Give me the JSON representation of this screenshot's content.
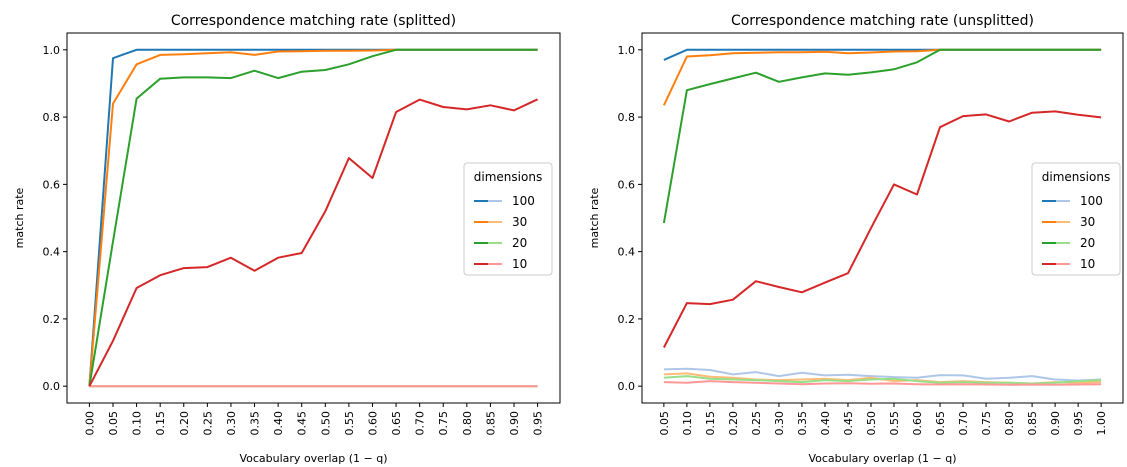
{
  "chart_data": [
    {
      "type": "line",
      "title": "Correspondence matching rate (splitted)",
      "xlabel": "Vocabulary overlap (1 − q)",
      "ylabel": "match rate",
      "xlim": [
        -0.0475,
        0.9975
      ],
      "ylim": [
        -0.05,
        1.05
      ],
      "xticks": [
        "0.00",
        "0.05",
        "0.10",
        "0.15",
        "0.20",
        "0.25",
        "0.30",
        "0.35",
        "0.40",
        "0.45",
        "0.50",
        "0.55",
        "0.60",
        "0.65",
        "0.70",
        "0.75",
        "0.80",
        "0.85",
        "0.90",
        "0.95"
      ],
      "yticks": [
        "0.0",
        "0.2",
        "0.4",
        "0.6",
        "0.8",
        "1.0"
      ],
      "grid": false,
      "legend": {
        "title": "dimensions",
        "placement": "center-right",
        "entries": [
          "100",
          "30",
          "20",
          "10"
        ]
      },
      "x": [
        0.0,
        0.05,
        0.1,
        0.15,
        0.2,
        0.25,
        0.3,
        0.35,
        0.4,
        0.45,
        0.5,
        0.55,
        0.6,
        0.65,
        0.7,
        0.75,
        0.8,
        0.85,
        0.9,
        0.95
      ],
      "series": [
        {
          "name": "100",
          "variant": "dark",
          "color": "#1f77b4",
          "values": [
            0.0,
            0.975,
            1.0,
            1.0,
            1.0,
            1.0,
            1.0,
            1.0,
            1.0,
            1.0,
            1.0,
            1.0,
            1.0,
            1.0,
            1.0,
            1.0,
            1.0,
            1.0,
            1.0,
            1.0
          ]
        },
        {
          "name": "30",
          "variant": "dark",
          "color": "#ff7f0e",
          "values": [
            0.0,
            0.84,
            0.957,
            0.985,
            0.987,
            0.99,
            0.993,
            0.985,
            0.995,
            0.996,
            0.997,
            0.997,
            0.998,
            1.0,
            1.0,
            1.0,
            1.0,
            1.0,
            1.0,
            1.0
          ]
        },
        {
          "name": "20",
          "variant": "dark",
          "color": "#2ca02c",
          "values": [
            0.0,
            0.43,
            0.855,
            0.914,
            0.918,
            0.918,
            0.916,
            0.938,
            0.916,
            0.935,
            0.94,
            0.957,
            0.981,
            1.0,
            1.0,
            1.0,
            1.0,
            1.0,
            1.0,
            1.0
          ]
        },
        {
          "name": "10",
          "variant": "dark",
          "color": "#d62728",
          "values": [
            0.0,
            0.135,
            0.292,
            0.33,
            0.351,
            0.354,
            0.382,
            0.343,
            0.382,
            0.396,
            0.52,
            0.678,
            0.619,
            0.815,
            0.852,
            0.83,
            0.823,
            0.835,
            0.82,
            0.853
          ]
        },
        {
          "name": "100",
          "variant": "light",
          "color": "#aec7e8",
          "values": [
            0,
            0,
            0,
            0,
            0,
            0,
            0,
            0,
            0,
            0,
            0,
            0,
            0,
            0,
            0,
            0,
            0,
            0,
            0,
            0
          ]
        },
        {
          "name": "30",
          "variant": "light",
          "color": "#ffbb78",
          "values": [
            0,
            0,
            0,
            0,
            0,
            0,
            0,
            0,
            0,
            0,
            0,
            0,
            0,
            0,
            0,
            0,
            0,
            0,
            0,
            0
          ]
        },
        {
          "name": "20",
          "variant": "light",
          "color": "#98df8a",
          "values": [
            0,
            0,
            0,
            0,
            0,
            0,
            0,
            0,
            0,
            0,
            0,
            0,
            0,
            0,
            0,
            0,
            0,
            0,
            0,
            0
          ]
        },
        {
          "name": "10",
          "variant": "light",
          "color": "#ff9896",
          "values": [
            0,
            0,
            0,
            0,
            0,
            0,
            0,
            0,
            0,
            0,
            0,
            0,
            0,
            0,
            0,
            0,
            0,
            0,
            0,
            0
          ]
        }
      ]
    },
    {
      "type": "line",
      "title": "Correspondence matching rate (unsplitted)",
      "xlabel": "Vocabulary overlap (1 − q)",
      "ylabel": "match rate",
      "xlim": [
        0.0025,
        1.0475
      ],
      "ylim": [
        -0.05,
        1.05
      ],
      "xticks": [
        "0.05",
        "0.10",
        "0.15",
        "0.20",
        "0.25",
        "0.30",
        "0.35",
        "0.40",
        "0.45",
        "0.50",
        "0.55",
        "0.60",
        "0.65",
        "0.70",
        "0.75",
        "0.80",
        "0.85",
        "0.90",
        "0.95",
        "1.00"
      ],
      "yticks": [
        "0.0",
        "0.2",
        "0.4",
        "0.6",
        "0.8",
        "1.0"
      ],
      "grid": false,
      "legend": {
        "title": "dimensions",
        "placement": "center-right",
        "entries": [
          "100",
          "30",
          "20",
          "10"
        ]
      },
      "x": [
        0.05,
        0.1,
        0.15,
        0.2,
        0.25,
        0.3,
        0.35,
        0.4,
        0.45,
        0.5,
        0.55,
        0.6,
        0.65,
        0.7,
        0.75,
        0.8,
        0.85,
        0.9,
        0.95,
        1.0
      ],
      "series": [
        {
          "name": "100",
          "variant": "dark",
          "color": "#1f77b4",
          "values": [
            0.97,
            1.0,
            1.0,
            1.0,
            1.0,
            1.0,
            1.0,
            1.0,
            1.0,
            1.0,
            1.0,
            1.0,
            1.0,
            1.0,
            1.0,
            1.0,
            1.0,
            1.0,
            1.0,
            1.0
          ]
        },
        {
          "name": "30",
          "variant": "dark",
          "color": "#ff7f0e",
          "values": [
            0.835,
            0.98,
            0.984,
            0.99,
            0.991,
            0.993,
            0.993,
            0.994,
            0.99,
            0.992,
            0.995,
            0.996,
            1.0,
            1.0,
            1.0,
            1.0,
            1.0,
            1.0,
            1.0,
            1.0
          ]
        },
        {
          "name": "20",
          "variant": "dark",
          "color": "#2ca02c",
          "values": [
            0.485,
            0.88,
            0.898,
            0.915,
            0.932,
            0.905,
            0.918,
            0.93,
            0.926,
            0.933,
            0.942,
            0.963,
            1.0,
            1.0,
            1.0,
            1.0,
            1.0,
            1.0,
            1.0,
            1.0
          ]
        },
        {
          "name": "10",
          "variant": "dark",
          "color": "#d62728",
          "values": [
            0.115,
            0.247,
            0.244,
            0.257,
            0.312,
            0.295,
            0.279,
            0.308,
            0.336,
            0.47,
            0.6,
            0.57,
            0.77,
            0.803,
            0.808,
            0.787,
            0.813,
            0.817,
            0.807,
            0.799
          ]
        },
        {
          "name": "100",
          "variant": "light",
          "color": "#aec7e8",
          "values": [
            0.05,
            0.052,
            0.048,
            0.035,
            0.042,
            0.03,
            0.04,
            0.032,
            0.034,
            0.03,
            0.027,
            0.025,
            0.033,
            0.032,
            0.022,
            0.025,
            0.03,
            0.02,
            0.017,
            0.02
          ]
        },
        {
          "name": "30",
          "variant": "light",
          "color": "#ffbb78",
          "values": [
            0.035,
            0.038,
            0.028,
            0.025,
            0.02,
            0.018,
            0.02,
            0.022,
            0.018,
            0.025,
            0.015,
            0.018,
            0.012,
            0.015,
            0.012,
            0.01,
            0.008,
            0.012,
            0.01,
            0.012
          ]
        },
        {
          "name": "20",
          "variant": "light",
          "color": "#98df8a",
          "values": [
            0.025,
            0.03,
            0.022,
            0.02,
            0.018,
            0.015,
            0.012,
            0.018,
            0.015,
            0.02,
            0.022,
            0.015,
            0.01,
            0.012,
            0.01,
            0.01,
            0.008,
            0.01,
            0.015,
            0.018
          ]
        },
        {
          "name": "10",
          "variant": "light",
          "color": "#ff9896",
          "values": [
            0.012,
            0.01,
            0.015,
            0.012,
            0.01,
            0.008,
            0.006,
            0.008,
            0.009,
            0.007,
            0.008,
            0.006,
            0.005,
            0.006,
            0.005,
            0.004,
            0.005,
            0.004,
            0.005,
            0.006
          ]
        }
      ]
    }
  ]
}
